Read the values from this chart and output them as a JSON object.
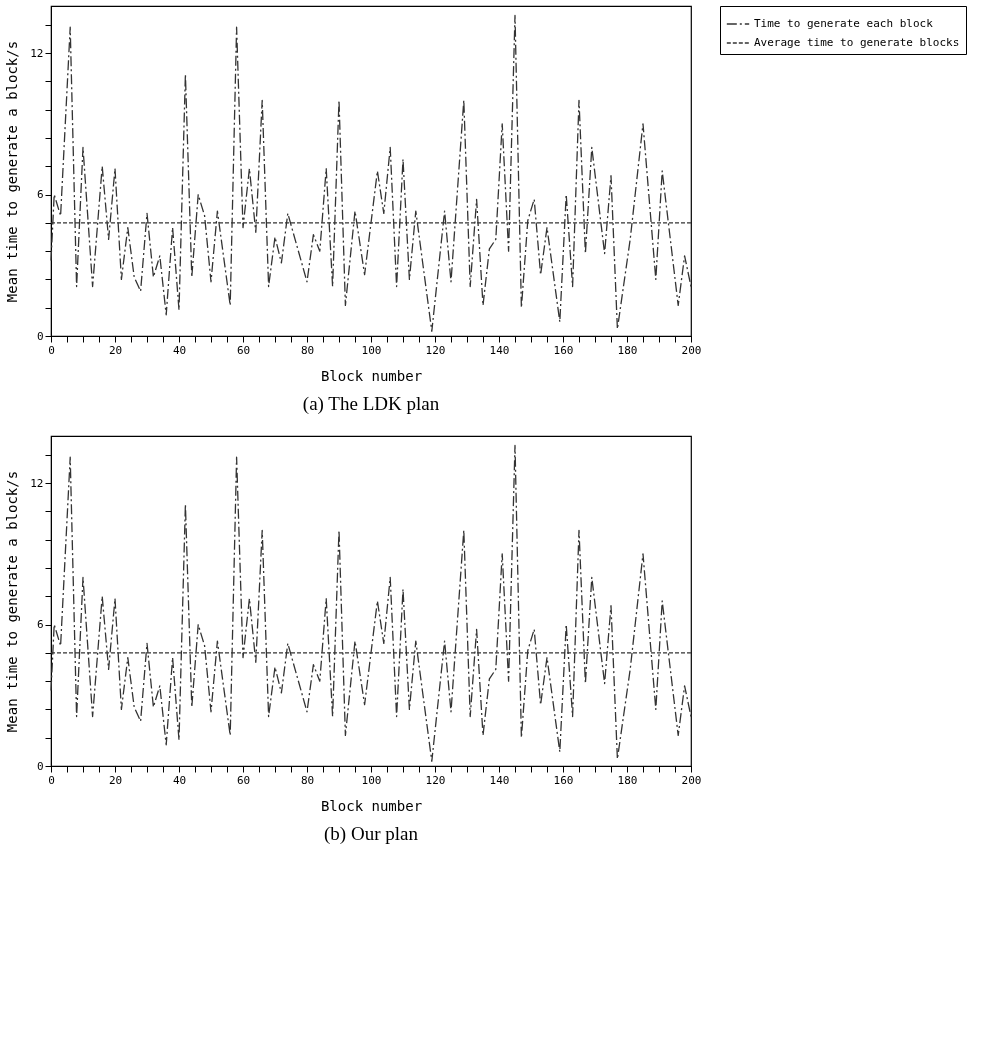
{
  "chart_data": [
    {
      "type": "line",
      "title": "(a) The LDK plan",
      "xlabel": "Block number",
      "ylabel": "Mean time to generate a block/s",
      "xlim": [
        0,
        200
      ],
      "ylim": [
        0,
        14
      ],
      "xticks": [
        0,
        {
          "value": 5,
          "label": null
        },
        {
          "value": 10,
          "label": null
        },
        {
          "value": 15,
          "label": null
        },
        20,
        {
          "value": 25,
          "label": null
        },
        {
          "value": 30,
          "label": null
        },
        {
          "value": 35,
          "label": null
        },
        40,
        {
          "value": 45,
          "label": null
        },
        {
          "value": 50,
          "label": null
        },
        {
          "value": 55,
          "label": null
        },
        60,
        {
          "value": 65,
          "label": null
        },
        {
          "value": 70,
          "label": null
        },
        {
          "value": 75,
          "label": null
        },
        80,
        {
          "value": 85,
          "label": null
        },
        {
          "value": 90,
          "label": null
        },
        {
          "value": 95,
          "label": null
        },
        100,
        {
          "value": 105,
          "label": null
        },
        {
          "value": 110,
          "label": null
        },
        {
          "value": 115,
          "label": null
        },
        120,
        {
          "value": 125,
          "label": null
        },
        {
          "value": 130,
          "label": null
        },
        {
          "value": 135,
          "label": null
        },
        140,
        {
          "value": 145,
          "label": null
        },
        {
          "value": 150,
          "label": null
        },
        {
          "value": 155,
          "label": null
        },
        160,
        {
          "value": 165,
          "label": null
        },
        {
          "value": 170,
          "label": null
        },
        {
          "value": 175,
          "label": null
        },
        180,
        {
          "value": 185,
          "label": null
        },
        {
          "value": 190,
          "label": null
        },
        {
          "value": 195,
          "label": null
        },
        200
      ],
      "yticks": [
        0,
        {
          "value": 1.2,
          "label": null
        },
        {
          "value": 2.4,
          "label": null
        },
        {
          "value": 3.6,
          "label": null
        },
        {
          "value": 4.8,
          "label": null
        },
        6,
        {
          "value": 7.2,
          "label": null
        },
        {
          "value": 8.4,
          "label": null
        },
        {
          "value": 9.6,
          "label": null
        },
        {
          "value": 10.8,
          "label": null
        },
        12,
        {
          "value": 13.2,
          "label": null
        }
      ],
      "grid": false,
      "legend": "right",
      "series": [
        {
          "name": "Time to generate each block",
          "color": "#333333",
          "line_style": "dashed",
          "x": [
            0,
            1,
            3,
            6,
            8,
            10,
            13,
            16,
            18,
            20,
            22,
            24,
            26,
            28,
            30,
            32,
            34,
            36,
            38,
            40,
            42,
            44,
            46,
            48,
            50,
            52,
            56,
            58,
            60,
            62,
            64,
            66,
            68,
            70,
            72,
            74,
            80,
            82,
            84,
            86,
            88,
            90,
            92,
            95,
            98,
            102,
            104,
            106,
            108,
            110,
            112,
            114,
            119,
            123,
            125,
            129,
            131,
            133,
            135,
            137,
            139,
            141,
            143,
            145,
            147,
            149,
            151,
            153,
            155,
            159,
            161,
            163,
            165,
            167,
            169,
            173,
            175,
            177,
            181,
            185,
            189,
            191,
            196,
            198,
            200
          ],
          "values": [
            3.2,
            6.0,
            5.1,
            13.1,
            2.1,
            8.0,
            2.1,
            7.2,
            4.1,
            7.1,
            2.4,
            4.6,
            2.5,
            1.9,
            5.2,
            2.5,
            3.4,
            0.9,
            4.6,
            1.1,
            11.1,
            2.5,
            6.0,
            5.1,
            2.3,
            5.3,
            1.3,
            13.1,
            4.6,
            7.1,
            4.4,
            10.0,
            2.1,
            4.2,
            3.1,
            5.2,
            2.3,
            4.3,
            3.6,
            7.1,
            2.1,
            10.0,
            1.3,
            5.3,
            2.6,
            7.0,
            5.2,
            8.0,
            2.1,
            7.5,
            2.4,
            5.3,
            0.2,
            5.3,
            2.3,
            10.0,
            2.1,
            5.8,
            1.3,
            3.7,
            4.1,
            9.0,
            3.6,
            13.6,
            1.2,
            4.9,
            5.8,
            2.6,
            4.6,
            0.6,
            6.0,
            2.1,
            10.0,
            3.5,
            8.0,
            3.5,
            6.8,
            0.3,
            4.1,
            9.0,
            2.4,
            7.0,
            1.3,
            3.4,
            2.1
          ]
        },
        {
          "name": "Average time to generate blocks",
          "color": "#333333",
          "line_style": "dotted",
          "x": [
            0,
            200
          ],
          "values": [
            4.8,
            4.8
          ]
        }
      ]
    },
    {
      "type": "line",
      "title": "(b) Our plan",
      "xlabel": "Block number",
      "ylabel": "Mean time to generate a block/s",
      "xlim": [
        0,
        200
      ],
      "ylim": [
        0,
        14
      ],
      "xticks": [
        0,
        {
          "value": 5,
          "label": null
        },
        {
          "value": 10,
          "label": null
        },
        {
          "value": 15,
          "label": null
        },
        20,
        {
          "value": 25,
          "label": null
        },
        {
          "value": 30,
          "label": null
        },
        {
          "value": 35,
          "label": null
        },
        40,
        {
          "value": 45,
          "label": null
        },
        {
          "value": 50,
          "label": null
        },
        {
          "value": 55,
          "label": null
        },
        60,
        {
          "value": 65,
          "label": null
        },
        {
          "value": 70,
          "label": null
        },
        {
          "value": 75,
          "label": null
        },
        80,
        {
          "value": 85,
          "label": null
        },
        {
          "value": 90,
          "label": null
        },
        {
          "value": 95,
          "label": null
        },
        100,
        {
          "value": 105,
          "label": null
        },
        {
          "value": 110,
          "label": null
        },
        {
          "value": 115,
          "label": null
        },
        120,
        {
          "value": 125,
          "label": null
        },
        {
          "value": 130,
          "label": null
        },
        {
          "value": 135,
          "label": null
        },
        140,
        {
          "value": 145,
          "label": null
        },
        {
          "value": 150,
          "label": null
        },
        {
          "value": 155,
          "label": null
        },
        160,
        {
          "value": 165,
          "label": null
        },
        {
          "value": 170,
          "label": null
        },
        {
          "value": 175,
          "label": null
        },
        180,
        {
          "value": 185,
          "label": null
        },
        {
          "value": 190,
          "label": null
        },
        {
          "value": 195,
          "label": null
        },
        200
      ],
      "yticks": [
        0,
        {
          "value": 1.2,
          "label": null
        },
        {
          "value": 2.4,
          "label": null
        },
        {
          "value": 3.6,
          "label": null
        },
        {
          "value": 4.8,
          "label": null
        },
        6,
        {
          "value": 7.2,
          "label": null
        },
        {
          "value": 8.4,
          "label": null
        },
        {
          "value": 9.6,
          "label": null
        },
        {
          "value": 10.8,
          "label": null
        },
        12,
        {
          "value": 13.2,
          "label": null
        }
      ],
      "grid": false,
      "legend": "right",
      "series": [
        {
          "name": "Time to generate each block",
          "color": "#333333",
          "line_style": "dashed",
          "x": [
            0,
            1,
            3,
            6,
            8,
            10,
            13,
            16,
            18,
            20,
            22,
            24,
            26,
            28,
            30,
            32,
            34,
            36,
            38,
            40,
            42,
            44,
            46,
            48,
            50,
            52,
            56,
            58,
            60,
            62,
            64,
            66,
            68,
            70,
            72,
            74,
            80,
            82,
            84,
            86,
            88,
            90,
            92,
            95,
            98,
            102,
            104,
            106,
            108,
            110,
            112,
            114,
            119,
            123,
            125,
            129,
            131,
            133,
            135,
            137,
            139,
            141,
            143,
            145,
            147,
            149,
            151,
            153,
            155,
            159,
            161,
            163,
            165,
            167,
            169,
            173,
            175,
            177,
            181,
            185,
            189,
            191,
            196,
            198,
            200
          ],
          "values": [
            3.2,
            6.0,
            5.1,
            13.1,
            2.1,
            8.0,
            2.1,
            7.2,
            4.1,
            7.1,
            2.4,
            4.6,
            2.5,
            1.9,
            5.2,
            2.5,
            3.4,
            0.9,
            4.6,
            1.1,
            11.1,
            2.5,
            6.0,
            5.1,
            2.3,
            5.3,
            1.3,
            13.1,
            4.6,
            7.1,
            4.4,
            10.0,
            2.1,
            4.2,
            3.1,
            5.2,
            2.3,
            4.3,
            3.6,
            7.1,
            2.1,
            10.0,
            1.3,
            5.3,
            2.6,
            7.0,
            5.2,
            8.0,
            2.1,
            7.5,
            2.4,
            5.3,
            0.2,
            5.3,
            2.3,
            10.0,
            2.1,
            5.8,
            1.3,
            3.7,
            4.1,
            9.0,
            3.6,
            13.6,
            1.2,
            4.9,
            5.8,
            2.6,
            4.6,
            0.6,
            6.0,
            2.1,
            10.0,
            3.5,
            8.0,
            3.5,
            6.8,
            0.3,
            4.1,
            9.0,
            2.4,
            7.0,
            1.3,
            3.4,
            2.1
          ]
        },
        {
          "name": "Average time to generate blocks",
          "color": "#333333",
          "line_style": "dotted",
          "x": [
            0,
            200
          ],
          "values": [
            4.8,
            4.8
          ]
        }
      ]
    }
  ]
}
